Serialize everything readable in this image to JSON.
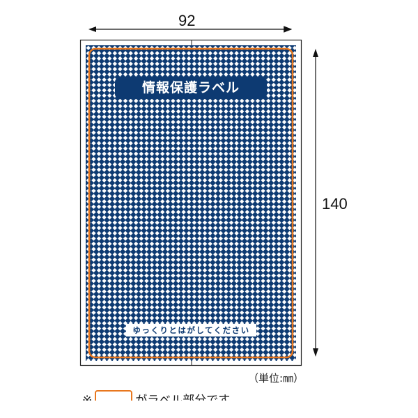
{
  "dimensions": {
    "width_label": "92",
    "height_label": "140",
    "unit_label": "（単位:㎜）"
  },
  "label": {
    "title": "情報保護ラベル",
    "peel_instruction": "ゆっくりとはがしてください"
  },
  "note": {
    "prefix": "※",
    "suffix": "がラベル部分です"
  },
  "colors": {
    "navy": "#0d3a72",
    "orange_outline": "#e8771e"
  }
}
